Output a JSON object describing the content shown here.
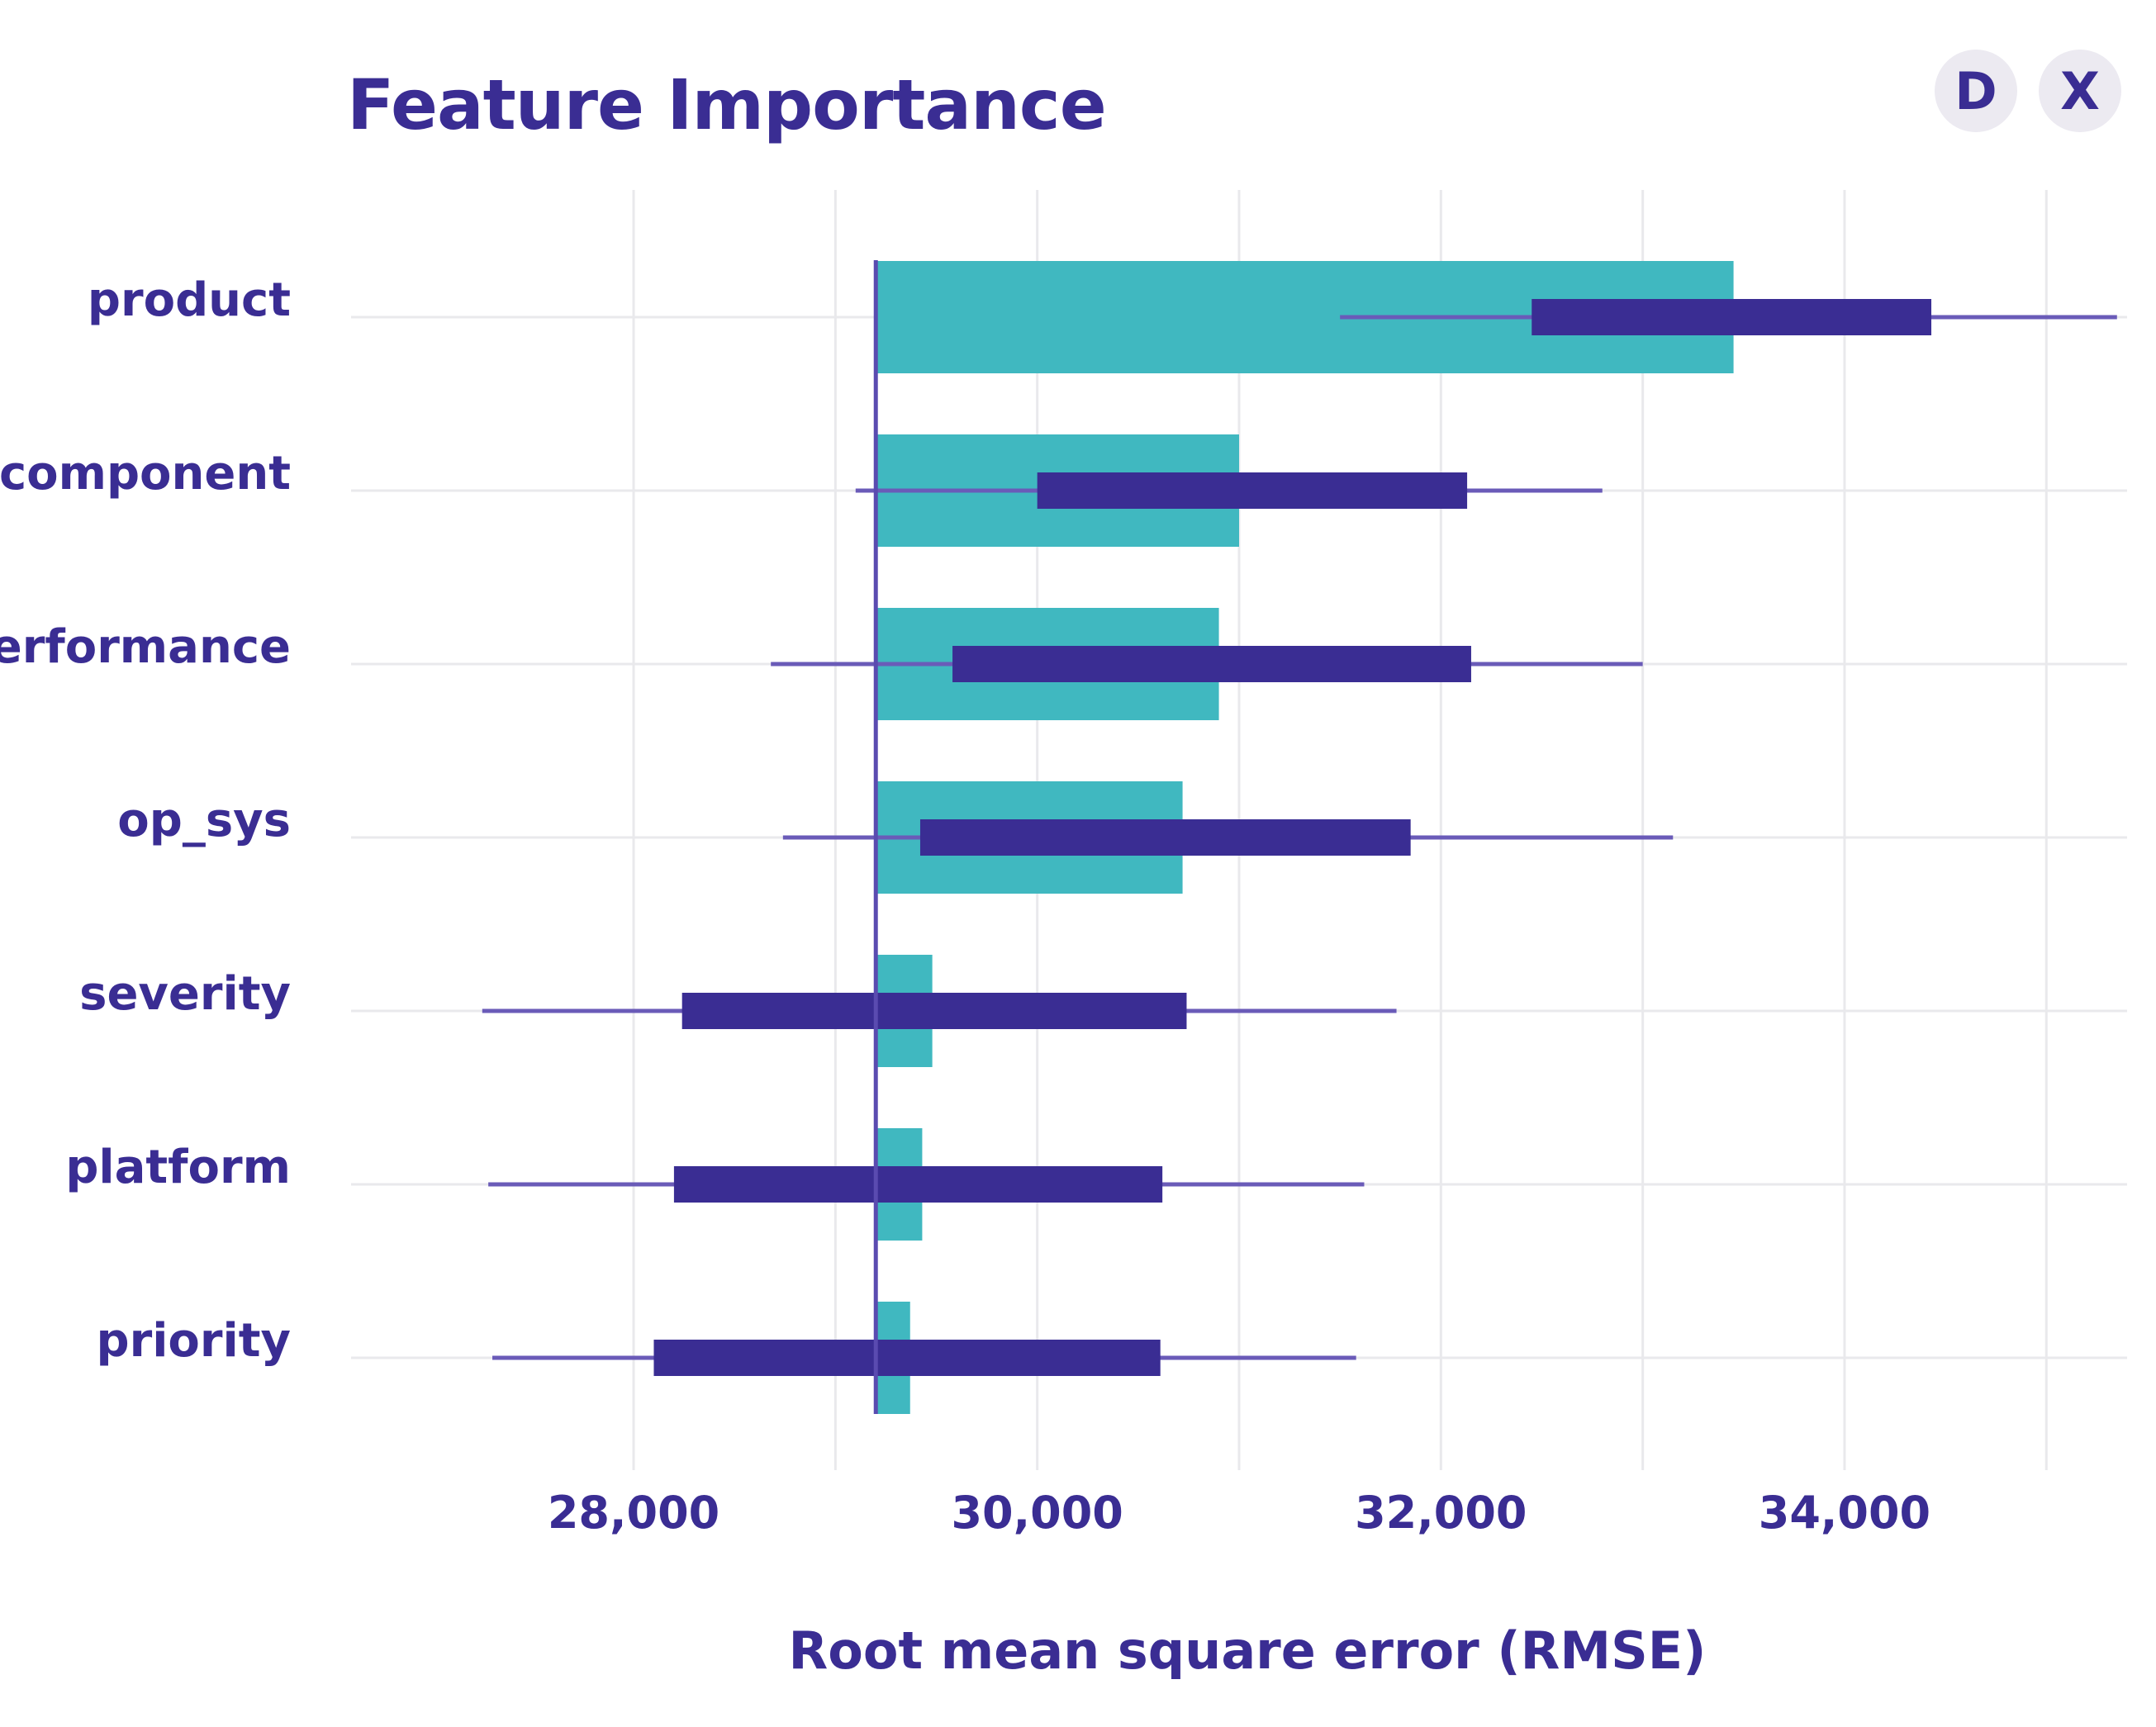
{
  "buttons": {
    "d_label": "D",
    "x_label": "X"
  },
  "chart_data": {
    "type": "bar",
    "title": "Feature Importance",
    "xlabel": "Root mean square error (RMSE)",
    "ylabel": "",
    "orientation": "horizontal",
    "baseline": 29200,
    "xlim": [
      26600,
      35400
    ],
    "xticks": [
      28000,
      30000,
      32000,
      34000
    ],
    "xtick_labels": [
      "28,000",
      "30,000",
      "32,000",
      "34,000"
    ],
    "grid": true,
    "categories": [
      "product",
      "component",
      "performance",
      "op_sys",
      "severity",
      "platform",
      "priority"
    ],
    "series": [
      {
        "type": "bar",
        "values": [
          33450,
          31000,
          30900,
          30720,
          29480,
          29430,
          29370
        ]
      },
      {
        "type": "interval",
        "box_low": [
          32450,
          30000,
          29580,
          29420,
          28240,
          28200,
          28100
        ],
        "box_high": [
          34430,
          32130,
          32150,
          31850,
          30740,
          30620,
          30610
        ],
        "whisker_low": [
          31500,
          29100,
          28680,
          28740,
          27250,
          27280,
          27300
        ],
        "whisker_high": [
          35350,
          32800,
          33000,
          33150,
          31780,
          31620,
          31580
        ]
      }
    ],
    "colors": {
      "bar": "#40b8c0",
      "interval": "#3a2d93",
      "whisker": "#6a5bb8",
      "grid": "#e9e9ec",
      "text": "#3a2d93"
    }
  }
}
